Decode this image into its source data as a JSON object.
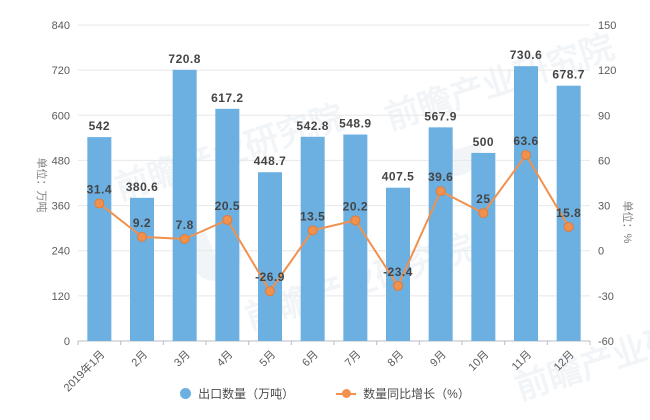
{
  "chart_data": {
    "type": "bar",
    "subtype": "bar-line-combo",
    "title": "",
    "categories": [
      "2019年1月",
      "2月",
      "3月",
      "4月",
      "5月",
      "6月",
      "7月",
      "8月",
      "9月",
      "10月",
      "11月",
      "12月"
    ],
    "series": [
      {
        "name": "出口数量（万吨）",
        "type": "bar",
        "color": "#6CB0E2",
        "axis": "left",
        "values": [
          542,
          380.6,
          720.8,
          617.2,
          448.7,
          542.8,
          548.9,
          407.5,
          567.9,
          500,
          730.6,
          678.7
        ]
      },
      {
        "name": "数量同比增长（%）",
        "type": "line",
        "color": "#F0914E",
        "axis": "right",
        "values": [
          31.4,
          9.2,
          7.8,
          20.5,
          -26.9,
          13.5,
          20.2,
          -23.4,
          39.6,
          25,
          63.6,
          15.8
        ]
      }
    ],
    "left_axis": {
      "title": "单位：万吨",
      "min": 0,
      "max": 840,
      "step": 120,
      "ticks": [
        "0",
        "120",
        "240",
        "360",
        "480",
        "600",
        "720",
        "840"
      ]
    },
    "right_axis": {
      "title": "单位：%",
      "min": -60,
      "max": 150,
      "step": 30,
      "ticks": [
        "-60",
        "-30",
        "0",
        "30",
        "60",
        "90",
        "120",
        "150"
      ]
    },
    "grid": true,
    "legend_position": "bottom",
    "label_color": "#454545",
    "watermark": {
      "text": "前瞻产业研究院"
    }
  }
}
